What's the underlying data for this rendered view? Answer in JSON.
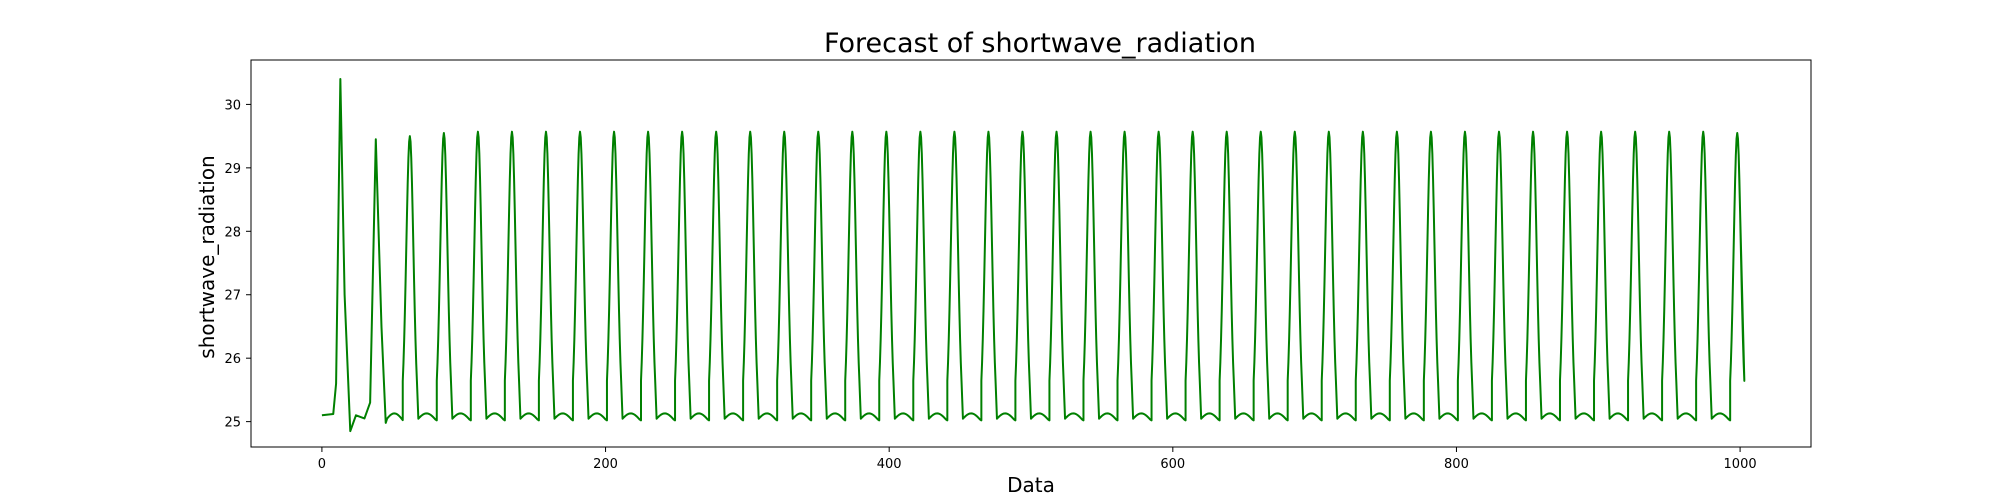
{
  "chart_data": {
    "type": "line",
    "title": "Forecast of shortwave_radiation",
    "xlabel": "Data",
    "ylabel": "shortwave_radiation",
    "xlim": [
      -50,
      1050
    ],
    "ylim": [
      24.6,
      30.7
    ],
    "x_ticks": [
      0,
      200,
      400,
      600,
      800,
      1000
    ],
    "x_tick_labels": [
      "0",
      "200",
      "400",
      "600",
      "800",
      "1000"
    ],
    "y_ticks": [
      25,
      26,
      27,
      28,
      29,
      30
    ],
    "y_tick_labels": [
      "25",
      "26",
      "27",
      "28",
      "29",
      "30"
    ],
    "grid": false,
    "series": [
      {
        "color": "#008000",
        "x_range": [
          0,
          999
        ],
        "sampled_points": [
          [
            0,
            25.1
          ],
          [
            8,
            25.12
          ],
          [
            10,
            25.6
          ],
          [
            13,
            30.4
          ],
          [
            16,
            27.0
          ],
          [
            20,
            24.85
          ],
          [
            24,
            25.1
          ],
          [
            30,
            25.05
          ],
          [
            34,
            25.3
          ],
          [
            38,
            29.45
          ],
          [
            42,
            26.5
          ],
          [
            45,
            24.98
          ],
          [
            62,
            29.5
          ],
          [
            86,
            29.55
          ],
          [
            110,
            29.57
          ],
          [
            134,
            29.57
          ],
          [
            158,
            29.57
          ],
          [
            182,
            29.57
          ],
          [
            206,
            29.57
          ],
          [
            230,
            29.57
          ],
          [
            254,
            29.57
          ],
          [
            278,
            29.57
          ],
          [
            302,
            29.57
          ],
          [
            326,
            29.57
          ],
          [
            350,
            29.57
          ],
          [
            374,
            29.57
          ],
          [
            398,
            29.57
          ],
          [
            422,
            29.57
          ],
          [
            446,
            29.57
          ],
          [
            470,
            29.57
          ],
          [
            494,
            29.57
          ],
          [
            518,
            29.57
          ],
          [
            542,
            29.57
          ],
          [
            566,
            29.57
          ],
          [
            590,
            29.57
          ],
          [
            614,
            29.57
          ],
          [
            638,
            29.57
          ],
          [
            662,
            29.57
          ],
          [
            686,
            29.57
          ],
          [
            710,
            29.57
          ],
          [
            734,
            29.57
          ],
          [
            758,
            29.57
          ],
          [
            782,
            29.57
          ],
          [
            806,
            29.57
          ],
          [
            830,
            29.57
          ],
          [
            854,
            29.57
          ],
          [
            878,
            29.57
          ],
          [
            902,
            29.57
          ],
          [
            926,
            29.57
          ],
          [
            950,
            29.57
          ],
          [
            974,
            29.57
          ],
          [
            998,
            29.55
          ],
          [
            999,
            29.2
          ]
        ],
        "baseline_min": 25.02,
        "baseline_shoulder": 25.13
      }
    ]
  }
}
